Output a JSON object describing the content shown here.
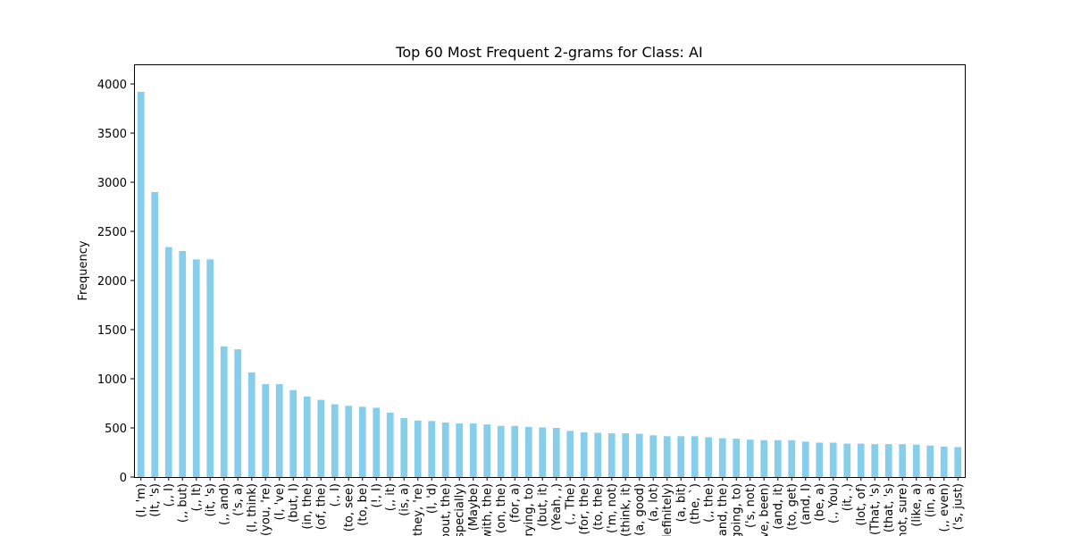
{
  "chart_data": {
    "type": "bar",
    "title": "Top 60 Most Frequent 2-grams for Class: AI",
    "xlabel": "",
    "ylabel": "Frequency",
    "ylim": [
      0,
      4200
    ],
    "yticks": [
      0,
      500,
      1000,
      1500,
      2000,
      2500,
      3000,
      3500,
      4000
    ],
    "grid": false,
    "legend": "none",
    "color": "#87ceeb",
    "categories": [
      "(I, 'm)",
      "(It, 's)",
      "(,, I)",
      "(,, but)",
      "(,, It)",
      "(it, 's)",
      "(,, and)",
      "('s, a)",
      "(I, think)",
      "(you, 're)",
      "(I, 've)",
      "(but, I)",
      "(in, the)",
      "(of, the)",
      "(., I)",
      "(to, see)",
      "(to, be)",
      "(!, I)",
      "(,, it)",
      "(is, a)",
      "(they, 're)",
      "(I, 'd)",
      "(about, the)",
      "(especially)",
      "(Maybe)",
      "(with, the)",
      "(on, the)",
      "(for, a)",
      "(trying, to)",
      "(but, it)",
      "(Yeah, ,)",
      "(., The)",
      "(for, the)",
      "(to, the)",
      "('m, not)",
      "(think, it)",
      "(a, good)",
      "(a, lot)",
      "(definitely)",
      "(a, bit)",
      "(the, `)",
      "(,, the)",
      "(and, the)",
      "(going, to)",
      "('s, not)",
      "(have, been)",
      "(and, it)",
      "(to, get)",
      "(and, I)",
      "(be, a)",
      "(., You)",
      "(it, .)",
      "(lot, of)",
      "(That, 's)",
      "(that, 's)",
      "(not, sure)",
      "(like, a)",
      "(in, a)",
      "(,, even)",
      "('s, just)"
    ],
    "values": [
      3920,
      2900,
      2340,
      2300,
      2215,
      2215,
      1330,
      1300,
      1065,
      945,
      945,
      885,
      820,
      785,
      740,
      725,
      715,
      705,
      655,
      600,
      575,
      570,
      555,
      545,
      545,
      535,
      520,
      520,
      510,
      505,
      500,
      470,
      455,
      450,
      445,
      445,
      440,
      425,
      415,
      415,
      415,
      405,
      395,
      390,
      380,
      375,
      375,
      375,
      360,
      350,
      350,
      340,
      340,
      335,
      335,
      335,
      330,
      320,
      310,
      305
    ]
  }
}
